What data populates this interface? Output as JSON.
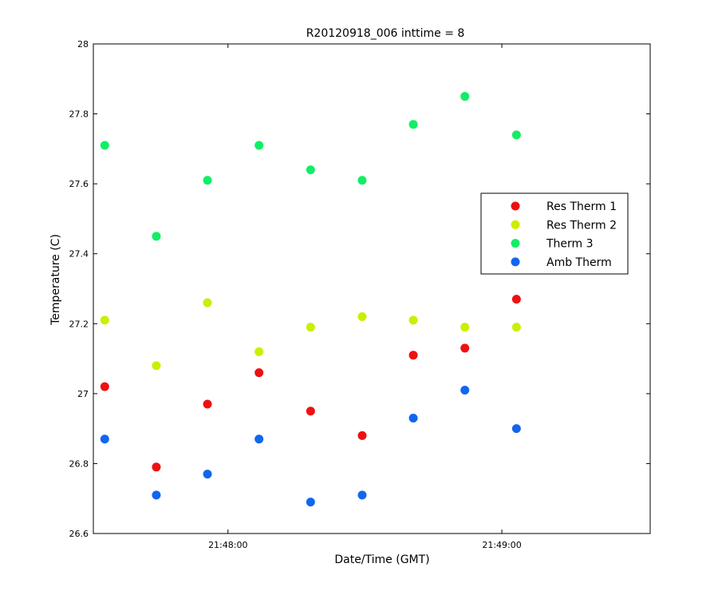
{
  "chart_data": {
    "type": "scatter",
    "title": "R20120918_006 inttime = 8",
    "xlabel": "Date/Time (GMT)",
    "ylabel": "Temperature (C)",
    "ylim": [
      26.6,
      28
    ],
    "xlim": [
      "21:47:30.5",
      "21:49:32.5"
    ],
    "yticks": [
      "26.6",
      "26.8",
      "27",
      "27.2",
      "27.4",
      "27.6",
      "27.8",
      "28"
    ],
    "xticks": [
      {
        "value": "21:48:00",
        "label": "21:48:00"
      },
      {
        "value": "21:49:00",
        "label": "21:49:00"
      }
    ],
    "x": [
      "21:47:33",
      "21:47:44.3",
      "21:47:55.5",
      "21:48:06.8",
      "21:48:18.1",
      "21:48:29.4",
      "21:48:40.6",
      "21:48:51.9",
      "21:49:03.2"
    ],
    "legend_position": "right",
    "grid": false,
    "series": [
      {
        "name": "Res Therm 1",
        "color": "#ee1111",
        "values": [
          27.02,
          26.79,
          26.97,
          27.06,
          26.95,
          26.88,
          27.11,
          27.13,
          27.27
        ]
      },
      {
        "name": "Res Therm 2",
        "color": "#ccee00",
        "values": [
          27.21,
          27.08,
          27.26,
          27.12,
          27.19,
          27.22,
          27.21,
          27.19,
          27.19
        ]
      },
      {
        "name": "Therm 3",
        "color": "#11ee66",
        "values": [
          27.71,
          27.45,
          27.61,
          27.71,
          27.64,
          27.61,
          27.77,
          27.85,
          27.74
        ]
      },
      {
        "name": "Amb Therm",
        "color": "#1166ee",
        "values": [
          26.87,
          26.71,
          26.77,
          26.87,
          26.69,
          26.71,
          26.93,
          27.01,
          26.9
        ]
      }
    ]
  }
}
